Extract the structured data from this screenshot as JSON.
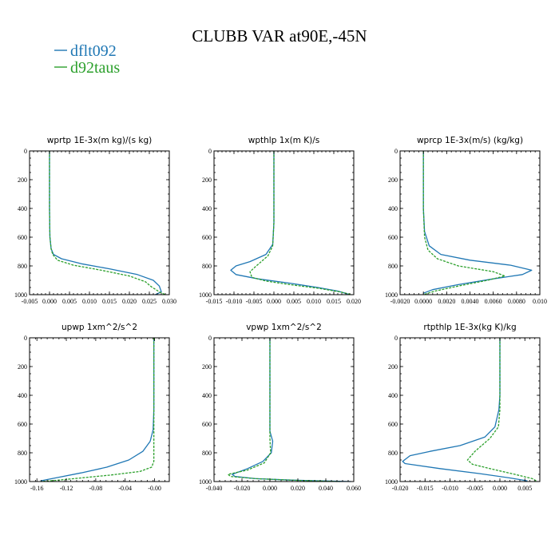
{
  "figure": {
    "title": "CLUBB VAR at90E,-45N",
    "legend": [
      {
        "name": "dflt092",
        "color": "#1f77b4",
        "dash": "solid"
      },
      {
        "name": "d92taus",
        "color": "#2ca02c",
        "dash": "dashed"
      }
    ]
  },
  "chart_data": [
    {
      "type": "line",
      "title": "wprtp  1E-3x(m kg)/(s kg)",
      "xlim": [
        -0.005,
        0.03
      ],
      "xticks": [
        "-0.005",
        "0.000",
        "0.005",
        "0.010",
        "0.015",
        "0.020",
        "0.025",
        "0.030"
      ],
      "xtick_values": [
        -0.005,
        0,
        0.005,
        0.01,
        0.015,
        0.02,
        0.025,
        0.03
      ],
      "ylim": [
        1000,
        0
      ],
      "yticks": [
        0,
        200,
        400,
        600,
        800,
        1000
      ],
      "series": [
        {
          "name": "dflt092",
          "points": [
            [
              0.0,
              0
            ],
            [
              0.0,
              400
            ],
            [
              0.0001,
              600
            ],
            [
              0.0004,
              680
            ],
            [
              0.001,
              720
            ],
            [
              0.003,
              750
            ],
            [
              0.008,
              785
            ],
            [
              0.015,
              820
            ],
            [
              0.022,
              860
            ],
            [
              0.026,
              900
            ],
            [
              0.0275,
              940
            ],
            [
              0.028,
              980
            ],
            [
              0.0265,
              1000
            ]
          ]
        },
        {
          "name": "d92taus",
          "points": [
            [
              0.0,
              0
            ],
            [
              0.0,
              400
            ],
            [
              0.0001,
              600
            ],
            [
              0.0004,
              680
            ],
            [
              0.0008,
              720
            ],
            [
              0.002,
              760
            ],
            [
              0.006,
              795
            ],
            [
              0.013,
              830
            ],
            [
              0.02,
              870
            ],
            [
              0.024,
              910
            ],
            [
              0.0255,
              945
            ],
            [
              0.0275,
              980
            ],
            [
              0.029,
              1000
            ]
          ]
        }
      ]
    },
    {
      "type": "line",
      "title": "wpthlp  1x(m K)/s",
      "xlim": [
        -0.015,
        0.02
      ],
      "xticks": [
        "-0.015",
        "-0.010",
        "-0.005",
        "0.000",
        "0.005",
        "0.010",
        "0.015",
        "0.020"
      ],
      "xtick_values": [
        -0.015,
        -0.01,
        -0.005,
        0,
        0.005,
        0.01,
        0.015,
        0.02
      ],
      "ylim": [
        1000,
        0
      ],
      "yticks": [
        0,
        200,
        400,
        600,
        800,
        1000
      ],
      "series": [
        {
          "name": "dflt092",
          "points": [
            [
              0.0,
              0
            ],
            [
              0.0,
              500
            ],
            [
              -0.0003,
              650
            ],
            [
              -0.002,
              720
            ],
            [
              -0.006,
              770
            ],
            [
              -0.0095,
              800
            ],
            [
              -0.0108,
              830
            ],
            [
              -0.0095,
              860
            ],
            [
              -0.004,
              890
            ],
            [
              0.004,
              920
            ],
            [
              0.011,
              950
            ],
            [
              0.016,
              975
            ],
            [
              0.0185,
              995
            ]
          ]
        },
        {
          "name": "d92taus",
          "points": [
            [
              0.0,
              0
            ],
            [
              0.0,
              500
            ],
            [
              -0.0003,
              660
            ],
            [
              -0.0015,
              730
            ],
            [
              -0.004,
              790
            ],
            [
              -0.006,
              840
            ],
            [
              -0.0055,
              880
            ],
            [
              -0.002,
              905
            ],
            [
              0.004,
              930
            ],
            [
              0.011,
              955
            ],
            [
              0.0165,
              980
            ],
            [
              0.0195,
              1000
            ]
          ]
        }
      ]
    },
    {
      "type": "line",
      "title": "wprcp  1E-3x(m/s) (kg/kg)",
      "xlim": [
        -0.002,
        0.01
      ],
      "xticks": [
        "-0.0020",
        "0.0000",
        "0.0020",
        "0.0040",
        "0.0060",
        "0.0080",
        "0.010"
      ],
      "xtick_values": [
        -0.002,
        0,
        0.002,
        0.004,
        0.006,
        0.008,
        0.01
      ],
      "ylim": [
        1000,
        0
      ],
      "yticks": [
        0,
        200,
        400,
        600,
        800,
        1000
      ],
      "series": [
        {
          "name": "dflt092",
          "points": [
            [
              0.0,
              0
            ],
            [
              0.0,
              400
            ],
            [
              0.0001,
              560
            ],
            [
              0.0005,
              660
            ],
            [
              0.0015,
              720
            ],
            [
              0.004,
              760
            ],
            [
              0.0075,
              795
            ],
            [
              0.0093,
              830
            ],
            [
              0.0085,
              860
            ],
            [
              0.006,
              890
            ],
            [
              0.003,
              930
            ],
            [
              0.0008,
              965
            ],
            [
              0.0,
              990
            ]
          ]
        },
        {
          "name": "d92taus",
          "points": [
            [
              0.0,
              0
            ],
            [
              0.0,
              400
            ],
            [
              0.0001,
              600
            ],
            [
              0.0004,
              690
            ],
            [
              0.0012,
              750
            ],
            [
              0.003,
              800
            ],
            [
              0.006,
              840
            ],
            [
              0.007,
              870
            ],
            [
              0.0055,
              900
            ],
            [
              0.003,
              940
            ],
            [
              0.001,
              975
            ],
            [
              0.0,
              1000
            ]
          ]
        }
      ]
    },
    {
      "type": "line",
      "title": "upwp   1xm^2/s^2",
      "xlim": [
        -0.17,
        0.02
      ],
      "xticks": [
        "-0.16",
        "-0.12",
        "-0.08",
        "-0.04",
        "-0.00"
      ],
      "xtick_values": [
        -0.16,
        -0.12,
        -0.08,
        -0.04,
        0
      ],
      "ylim": [
        1000,
        0
      ],
      "yticks": [
        0,
        200,
        400,
        600,
        800,
        1000
      ],
      "series": [
        {
          "name": "dflt092",
          "points": [
            [
              -0.001,
              0
            ],
            [
              -0.001,
              500
            ],
            [
              -0.002,
              640
            ],
            [
              -0.006,
              720
            ],
            [
              -0.016,
              790
            ],
            [
              -0.035,
              850
            ],
            [
              -0.065,
              900
            ],
            [
              -0.1,
              940
            ],
            [
              -0.13,
              970
            ],
            [
              -0.155,
              995
            ]
          ]
        },
        {
          "name": "d92taus",
          "points": [
            [
              -0.001,
              0
            ],
            [
              -0.001,
              700
            ],
            [
              -0.001,
              860
            ],
            [
              -0.004,
              900
            ],
            [
              -0.02,
              930
            ],
            [
              -0.06,
              955
            ],
            [
              -0.1,
              975
            ],
            [
              -0.13,
              990
            ],
            [
              -0.155,
              1000
            ]
          ]
        }
      ]
    },
    {
      "type": "line",
      "title": "vpwp   1xm^2/s^2",
      "xlim": [
        -0.04,
        0.06
      ],
      "xticks": [
        "-0.040",
        "-0.020",
        "0.000",
        "0.020",
        "0.040",
        "0.060"
      ],
      "xtick_values": [
        -0.04,
        -0.02,
        0,
        0.02,
        0.04,
        0.06
      ],
      "ylim": [
        1000,
        0
      ],
      "yticks": [
        0,
        200,
        400,
        600,
        800,
        1000
      ],
      "series": [
        {
          "name": "dflt092",
          "points": [
            [
              0.0,
              0
            ],
            [
              0.0,
              650
            ],
            [
              0.002,
              720
            ],
            [
              0.001,
              800
            ],
            [
              -0.005,
              860
            ],
            [
              -0.016,
              910
            ],
            [
              -0.027,
              950
            ],
            [
              -0.025,
              965
            ],
            [
              -0.01,
              980
            ],
            [
              0.015,
              990
            ],
            [
              0.04,
              996
            ],
            [
              0.058,
              1000
            ]
          ]
        },
        {
          "name": "d92taus",
          "points": [
            [
              0.0,
              0
            ],
            [
              0.0,
              700
            ],
            [
              0.0005,
              800
            ],
            [
              -0.004,
              870
            ],
            [
              -0.016,
              920
            ],
            [
              -0.03,
              950
            ],
            [
              -0.028,
              965
            ],
            [
              -0.01,
              980
            ],
            [
              0.02,
              992
            ],
            [
              0.05,
              1000
            ]
          ]
        }
      ]
    },
    {
      "type": "line",
      "title": "rtpthlp  1E-3x(kg K)/kg",
      "xlim": [
        -0.02,
        0.008
      ],
      "xticks": [
        "-0.020",
        "-0.015",
        "-0.010",
        "-0.005",
        "0.000",
        "0.005"
      ],
      "xtick_values": [
        -0.02,
        -0.015,
        -0.01,
        -0.005,
        0,
        0.005
      ],
      "ylim": [
        1000,
        0
      ],
      "yticks": [
        0,
        200,
        400,
        600,
        800,
        1000
      ],
      "series": [
        {
          "name": "dflt092",
          "points": [
            [
              0.0,
              0
            ],
            [
              0.0,
              400
            ],
            [
              -0.0002,
              500
            ],
            [
              -0.001,
              620
            ],
            [
              -0.003,
              690
            ],
            [
              -0.008,
              750
            ],
            [
              -0.014,
              790
            ],
            [
              -0.018,
              820
            ],
            [
              -0.0195,
              860
            ],
            [
              -0.019,
              875
            ],
            [
              -0.012,
              910
            ],
            [
              -0.004,
              945
            ],
            [
              0.002,
              975
            ],
            [
              0.0055,
              995
            ]
          ]
        },
        {
          "name": "d92taus",
          "points": [
            [
              0.0,
              0
            ],
            [
              0.0,
              500
            ],
            [
              -0.0003,
              620
            ],
            [
              -0.002,
              700
            ],
            [
              -0.005,
              790
            ],
            [
              -0.0065,
              850
            ],
            [
              -0.0055,
              880
            ],
            [
              -0.002,
              910
            ],
            [
              0.003,
              950
            ],
            [
              0.0065,
              980
            ],
            [
              0.0075,
              1000
            ]
          ]
        }
      ]
    }
  ]
}
